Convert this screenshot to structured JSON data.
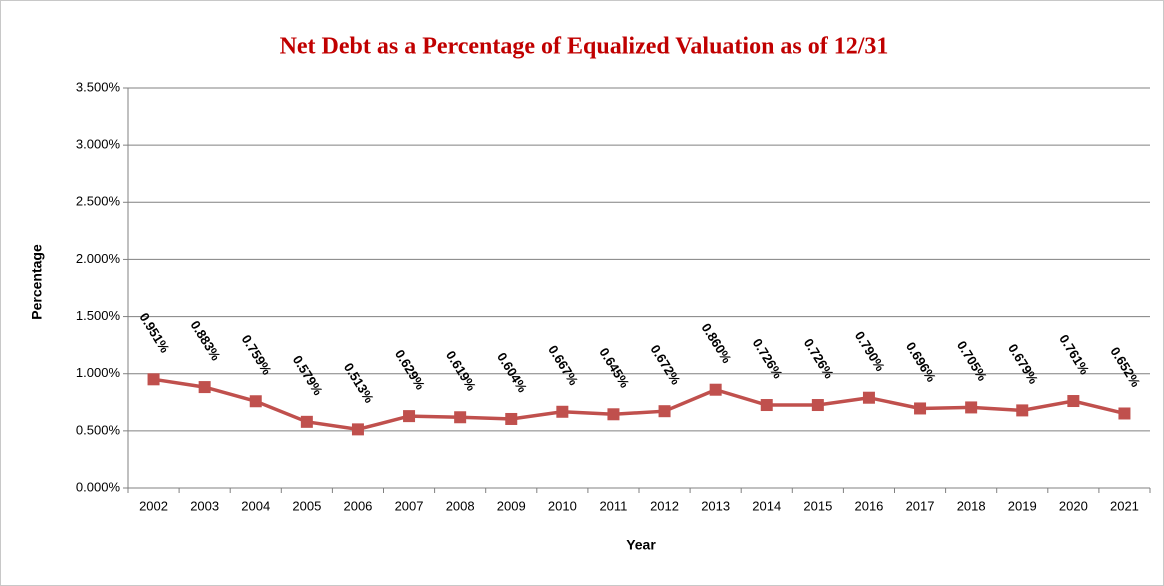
{
  "chart_data": {
    "type": "line",
    "title": "Net Debt as a Percentage of Equalized Valuation as of 12/31",
    "x_label": "Year",
    "y_label": "Percentage",
    "categories": [
      "2002",
      "2003",
      "2004",
      "2005",
      "2006",
      "2007",
      "2008",
      "2009",
      "2010",
      "2011",
      "2012",
      "2013",
      "2014",
      "2015",
      "2016",
      "2017",
      "2018",
      "2019",
      "2020",
      "2021"
    ],
    "series": [
      {
        "name": "Net Debt %",
        "color": "#c0504d",
        "values": [
          0.951,
          0.883,
          0.759,
          0.579,
          0.513,
          0.629,
          0.619,
          0.604,
          0.667,
          0.645,
          0.672,
          0.86,
          0.726,
          0.726,
          0.79,
          0.696,
          0.705,
          0.679,
          0.761,
          0.652
        ],
        "value_labels": [
          "0.951%",
          "0.883%",
          "0.759%",
          "0.579%",
          "0.513%",
          "0.629%",
          "0.619%",
          "0.604%",
          "0.667%",
          "0.645%",
          "0.672%",
          "0.860%",
          "0.726%",
          "0.726%",
          "0.790%",
          "0.696%",
          "0.705%",
          "0.679%",
          "0.761%",
          "0.652%"
        ]
      }
    ],
    "ylim": [
      0,
      3.5
    ],
    "yticks": [
      {
        "value": 0,
        "label": "0.000%"
      },
      {
        "value": 0.5,
        "label": "0.500%"
      },
      {
        "value": 1,
        "label": "1.000%"
      },
      {
        "value": 1.5,
        "label": "1.500%"
      },
      {
        "value": 2,
        "label": "2.000%"
      },
      {
        "value": 2.5,
        "label": "2.500%"
      },
      {
        "value": 3,
        "label": "3.000%"
      },
      {
        "value": 3.5,
        "label": "3.500%"
      }
    ],
    "grid": true
  }
}
